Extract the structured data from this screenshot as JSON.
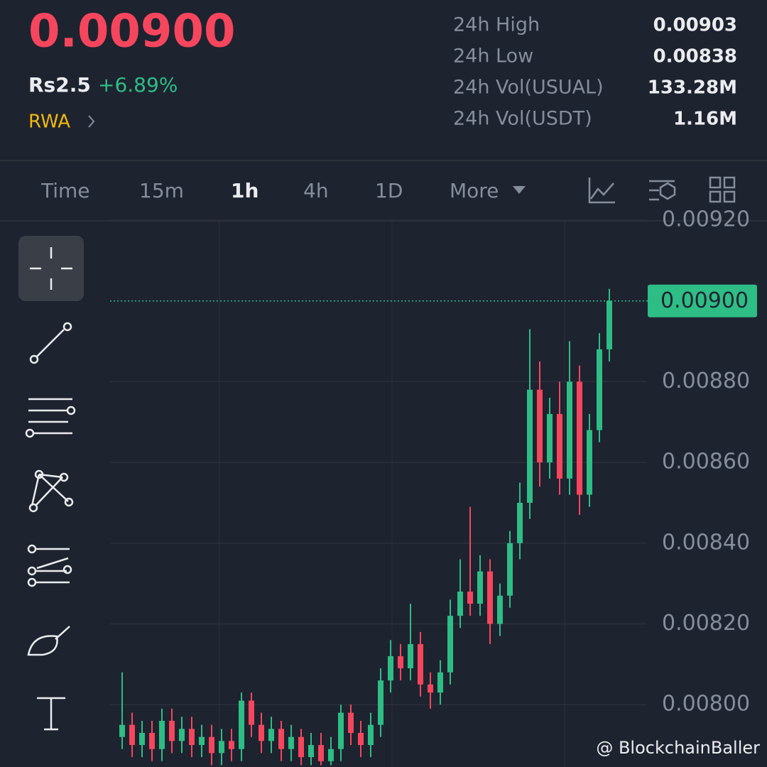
{
  "header": {
    "price": "0.00900",
    "fiat": "Rs2.5",
    "change": "+6.89%",
    "tag": "RWA",
    "stats": [
      [
        "24h High",
        "0.00903"
      ],
      [
        "24h Low",
        "0.00838"
      ],
      [
        "24h Vol(USUAL)",
        "133.28M"
      ],
      [
        "24h Vol(USDT)",
        "1.16M"
      ]
    ]
  },
  "tabs": [
    "Time",
    "15m",
    "1h",
    "4h",
    "1D",
    "More"
  ],
  "watermark": "@ BlockchainBaller",
  "chart_data": {
    "type": "candlestick",
    "open": [
      0.00792,
      0.00795,
      0.0079,
      0.00793,
      0.00789,
      0.00796,
      0.00791,
      0.00794,
      0.0079,
      0.00792,
      0.00788,
      0.00791,
      0.00789,
      0.00801,
      0.00795,
      0.00791,
      0.00794,
      0.00789,
      0.00792,
      0.00787,
      0.0079,
      0.00786,
      0.00789,
      0.00798,
      0.00793,
      0.0079,
      0.00795,
      0.00806,
      0.00812,
      0.00809,
      0.00815,
      0.00805,
      0.00803,
      0.00808,
      0.00822,
      0.00828,
      0.00825,
      0.00833,
      0.0082,
      0.00827,
      0.0084,
      0.0085,
      0.00878,
      0.0086,
      0.00872,
      0.00856,
      0.0088,
      0.00852,
      0.00868,
      0.00888
    ],
    "high": [
      0.00808,
      0.00798,
      0.00796,
      0.00796,
      0.00799,
      0.00799,
      0.00797,
      0.00797,
      0.00795,
      0.00795,
      0.00794,
      0.00794,
      0.00803,
      0.00803,
      0.00798,
      0.00797,
      0.00796,
      0.00795,
      0.00794,
      0.00793,
      0.00793,
      0.00792,
      0.008,
      0.008,
      0.00796,
      0.00798,
      0.00809,
      0.00816,
      0.00815,
      0.00825,
      0.00818,
      0.00808,
      0.00811,
      0.00826,
      0.00836,
      0.00849,
      0.00837,
      0.00836,
      0.0083,
      0.00843,
      0.00855,
      0.00893,
      0.00885,
      0.00876,
      0.0088,
      0.0089,
      0.00884,
      0.00872,
      0.00892,
      0.00903
    ],
    "low": [
      0.00789,
      0.00787,
      0.00787,
      0.00786,
      0.00786,
      0.00788,
      0.00788,
      0.00787,
      0.00787,
      0.00785,
      0.00785,
      0.00786,
      0.00786,
      0.00792,
      0.00788,
      0.00788,
      0.00786,
      0.00786,
      0.00785,
      0.00785,
      0.00785,
      0.00785,
      0.00786,
      0.0079,
      0.00787,
      0.00787,
      0.00792,
      0.00803,
      0.00806,
      0.00806,
      0.00802,
      0.00799,
      0.008,
      0.00805,
      0.00819,
      0.00822,
      0.00822,
      0.00815,
      0.00817,
      0.00824,
      0.00836,
      0.00846,
      0.00854,
      0.00856,
      0.00852,
      0.00852,
      0.00847,
      0.00849,
      0.00865,
      0.00885
    ],
    "close": [
      0.00795,
      0.0079,
      0.00793,
      0.00789,
      0.00796,
      0.00791,
      0.00794,
      0.0079,
      0.00792,
      0.00788,
      0.00791,
      0.00789,
      0.00801,
      0.00795,
      0.00791,
      0.00794,
      0.00789,
      0.00792,
      0.00787,
      0.0079,
      0.00786,
      0.00789,
      0.00798,
      0.00793,
      0.0079,
      0.00795,
      0.00806,
      0.00812,
      0.00809,
      0.00815,
      0.00805,
      0.00803,
      0.00808,
      0.00822,
      0.00828,
      0.00825,
      0.00833,
      0.0082,
      0.00827,
      0.0084,
      0.0085,
      0.00878,
      0.0086,
      0.00872,
      0.00856,
      0.0088,
      0.00852,
      0.00868,
      0.00888,
      0.009
    ],
    "up_color": "#2ebd85",
    "down_color": "#f6465d",
    "ylim": [
      0.00785,
      0.0092
    ],
    "yticks": [
      {
        "value": 0.008,
        "label": "0.00800"
      },
      {
        "value": 0.0082,
        "label": "0.00820"
      },
      {
        "value": 0.0084,
        "label": "0.00840"
      },
      {
        "value": 0.0086,
        "label": "0.00860"
      },
      {
        "value": 0.0088,
        "label": "0.00880"
      },
      {
        "value": 0.0092,
        "label": "0.00920"
      }
    ],
    "last_price": {
      "value": 0.009,
      "label": "0.00900"
    },
    "grid": true
  }
}
